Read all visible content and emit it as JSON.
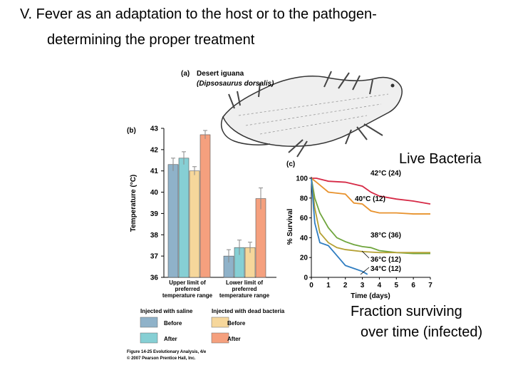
{
  "slide": {
    "title": "V. Fever as an adaptation to the host or to the pathogen-",
    "subtitle": "determining the proper treatment",
    "note_live": "Live Bacteria",
    "note_fraction_1": "Fraction surviving",
    "note_fraction_2": "over time (infected)"
  },
  "figure": {
    "panel_a_tag": "(a)",
    "panel_a_title": "Desert iguana",
    "panel_a_species": "(Dipsosaurus dorsalis)",
    "legend_saline": "Injected with saline",
    "legend_bacteria": "Injected with dead bacteria",
    "legend_before": "Before",
    "legend_after": "After",
    "caption_1": "Figure 14-25  Evolutionary Analysis, 4/e",
    "caption_2": "© 2007 Pearson Prentice Hall, Inc."
  },
  "chart_data": [
    {
      "type": "bar",
      "panel": "(b)",
      "ylabel": "Temperature (°C)",
      "ylim": [
        36,
        43
      ],
      "yticks": [
        36,
        37,
        38,
        39,
        40,
        41,
        42,
        43
      ],
      "categories": [
        [
          "Upper limit of",
          "preferred",
          "temperature range"
        ],
        [
          "Lower limit of",
          "preferred",
          "temperature range"
        ]
      ],
      "series": [
        {
          "name": "Injected with saline — Before",
          "color": "#8fb2c9",
          "values": [
            41.3,
            37.0
          ],
          "errors": [
            0.3,
            0.3
          ]
        },
        {
          "name": "Injected with saline — After",
          "color": "#86cfd4",
          "values": [
            41.6,
            37.4
          ],
          "errors": [
            0.3,
            0.35
          ]
        },
        {
          "name": "Injected with dead bacteria — Before",
          "color": "#f6d79b",
          "values": [
            41.0,
            37.4
          ],
          "errors": [
            0.2,
            0.25
          ]
        },
        {
          "name": "Injected with dead bacteria — After",
          "color": "#f5a07e",
          "values": [
            42.7,
            39.7
          ],
          "errors": [
            0.2,
            0.5
          ]
        }
      ]
    },
    {
      "type": "line",
      "panel": "(c)",
      "xlabel": "Time (days)",
      "ylabel": "% Survival",
      "xlim": [
        0,
        7
      ],
      "ylim": [
        0,
        100
      ],
      "xticks": [
        0,
        1,
        2,
        3,
        4,
        5,
        6,
        7
      ],
      "yticks": [
        0,
        20,
        40,
        60,
        80,
        100
      ],
      "series": [
        {
          "name": "42°C (24)",
          "color": "#d62a46",
          "x": [
            0,
            0.3,
            1,
            2,
            3,
            3.5,
            4,
            5,
            6,
            7
          ],
          "y": [
            100,
            100,
            97,
            96,
            92,
            86,
            82,
            79,
            77,
            74
          ]
        },
        {
          "name": "40°C (12)",
          "color": "#e8922d",
          "x": [
            0,
            0.3,
            1,
            1.5,
            2,
            2.5,
            3,
            3.5,
            4,
            5,
            6,
            7
          ],
          "y": [
            100,
            96,
            86,
            85,
            84,
            75,
            74,
            67,
            65,
            65,
            64,
            64
          ]
        },
        {
          "name": "38°C (36)",
          "color": "#6fa53d",
          "x": [
            0,
            0.2,
            0.5,
            1,
            1.5,
            2,
            2.5,
            3,
            3.5,
            4,
            5,
            6,
            7
          ],
          "y": [
            100,
            80,
            65,
            50,
            40,
            36,
            33,
            31,
            30,
            27,
            25,
            24,
            24
          ]
        },
        {
          "name": "36°C (12)",
          "color": "#b5a033",
          "x": [
            0,
            0.2,
            0.5,
            1,
            1.5,
            2,
            3,
            4,
            5,
            6,
            7
          ],
          "y": [
            100,
            70,
            45,
            35,
            30,
            28,
            26,
            25,
            25,
            25,
            25
          ]
        },
        {
          "name": "34°C (12)",
          "color": "#2f7dc1",
          "x": [
            0,
            0.2,
            0.5,
            1,
            1.5,
            2,
            2.5,
            3,
            3.3
          ],
          "y": [
            100,
            55,
            35,
            32,
            22,
            12,
            9,
            6,
            3
          ]
        }
      ]
    }
  ]
}
